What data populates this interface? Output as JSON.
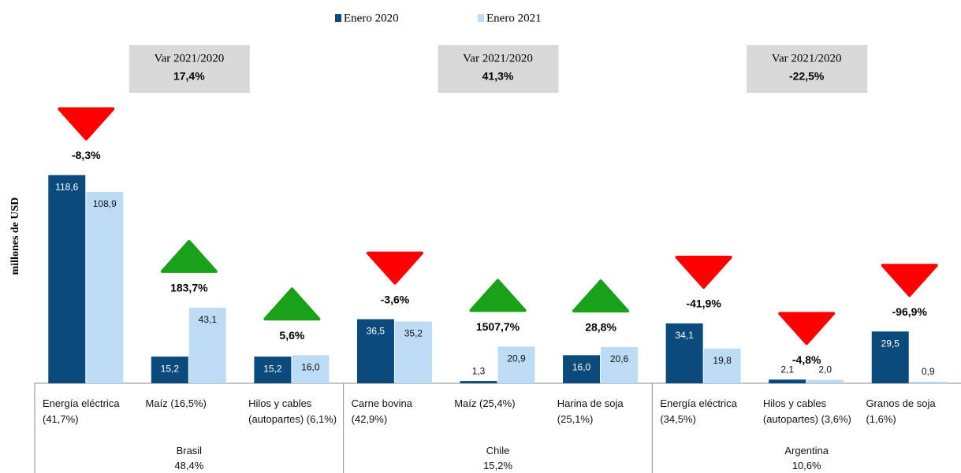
{
  "chart_data": {
    "type": "bar",
    "y_axis_label": "millones de USD",
    "categories": [
      "Energía eléctrica\n(41,7%)",
      "Maíz   (16,5%)",
      "Hilos y cables\n(autopartes)  (6,1%)",
      "Carne bovina\n(42,9%)",
      "Maíz  (25,4%)",
      "Harina de soja\n(25,1%)",
      "Energía eléctrica\n(34,5%)",
      "Hilos y cables\n(autopartes)  (3,6%)",
      "Granos de soja\n(1,6%)"
    ],
    "series": [
      {
        "name": "Enero 2020",
        "color": "#0b4a7d",
        "values": [
          118.6,
          15.2,
          15.2,
          36.5,
          1.3,
          16.0,
          34.1,
          2.1,
          29.5
        ],
        "value_labels": [
          "118,6",
          "15,2",
          "15,2",
          "36,5",
          "1,3",
          "16,0",
          "34,1",
          "2,1",
          "29,5"
        ]
      },
      {
        "name": "Enero 2021",
        "color": "#bcdcf6",
        "values": [
          108.9,
          43.1,
          16.0,
          35.2,
          20.9,
          20.6,
          19.8,
          2.0,
          0.9
        ],
        "value_labels": [
          "108,9",
          "43,1",
          "16,0",
          "35,2",
          "20,9",
          "20,6",
          "19,8",
          "2,0",
          "0,9"
        ]
      }
    ],
    "variations": [
      {
        "value": -8.3,
        "label": "-8,3%"
      },
      {
        "value": 183.7,
        "label": "183,7%"
      },
      {
        "value": 5.6,
        "label": "5,6%"
      },
      {
        "value": -3.6,
        "label": "-3,6%"
      },
      {
        "value": 1507.7,
        "label": "1507,7%"
      },
      {
        "value": 28.8,
        "label": "28,8%"
      },
      {
        "value": -41.9,
        "label": "-41,9%"
      },
      {
        "value": -4.8,
        "label": "-4,8%"
      },
      {
        "value": -96.9,
        "label": "-96,9%"
      }
    ],
    "groups": [
      {
        "name": "Brasil",
        "share": {
          "value": 48.4,
          "label": "48,4%"
        },
        "variation_title": "Var 2021/2020",
        "variation": {
          "value": 17.4,
          "label": "17,4%"
        }
      },
      {
        "name": "Chile",
        "share": {
          "value": 15.2,
          "label": "15,2%"
        },
        "variation_title": "Var 2021/2020",
        "variation": {
          "value": 41.3,
          "label": "41,3%"
        }
      },
      {
        "name": "Argentina",
        "share": {
          "value": 10.6,
          "label": "10,6%"
        },
        "variation_title": "Var 2021/2020",
        "variation": {
          "value": -22.5,
          "label": "-22,5%"
        }
      }
    ],
    "ylim": [
      0,
      130
    ],
    "up_color": "#1aa11a",
    "down_color": "#ff0000"
  }
}
